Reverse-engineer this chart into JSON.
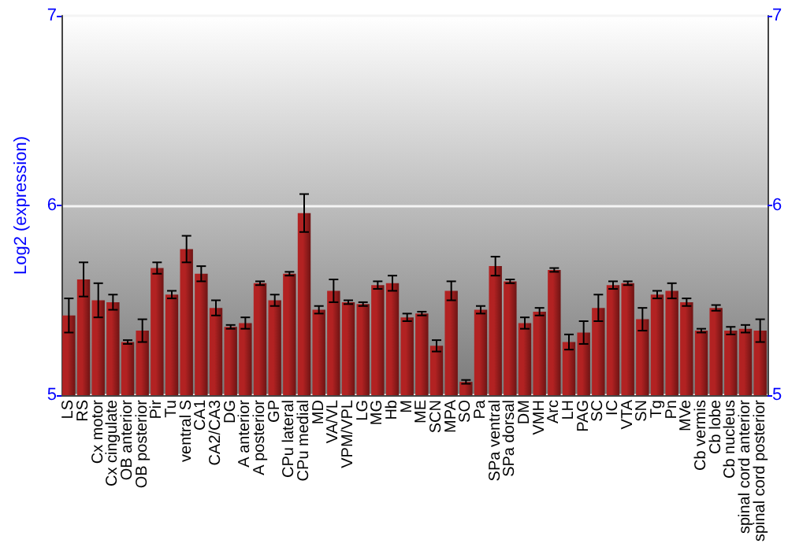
{
  "chart_data": {
    "type": "bar",
    "ylabel": "Log2 (expression)",
    "categories": [
      "LS",
      "RS",
      "Cx motor",
      "Cx cingulate",
      "OB anterior",
      "OB posterior",
      "Pir",
      "Tu",
      "ventral S",
      "CA1",
      "CA2/CA3",
      "DG",
      "A anterior",
      "A posterior",
      "GP",
      "CPu lateral",
      "CPu medial",
      "MD",
      "VA/VL",
      "VPM/VPL",
      "LG",
      "MG",
      "Hb",
      "M",
      "ME",
      "SCN",
      "MPA",
      "SO",
      "Pa",
      "SPa ventral",
      "SPa dorsal",
      "DM",
      "VMH",
      "Arc",
      "LH",
      "PAG",
      "SC",
      "IC",
      "VTA",
      "SN",
      "Tg",
      "Pn",
      "MVe",
      "Cb vermis",
      "Cb lobe",
      "Cb nucleus",
      "spinal cord anterior",
      "spinal cord posterior"
    ],
    "values": [
      5.42,
      5.61,
      5.5,
      5.49,
      5.28,
      5.34,
      5.67,
      5.53,
      5.77,
      5.64,
      5.46,
      5.36,
      5.38,
      5.59,
      5.5,
      5.64,
      5.96,
      5.45,
      5.55,
      5.49,
      5.48,
      5.58,
      5.59,
      5.41,
      5.43,
      5.26,
      5.55,
      5.07,
      5.45,
      5.68,
      5.6,
      5.38,
      5.44,
      5.66,
      5.28,
      5.33,
      5.46,
      5.58,
      5.59,
      5.4,
      5.53,
      5.55,
      5.49,
      5.34,
      5.46,
      5.34,
      5.35,
      5.34
    ],
    "errors": [
      0.09,
      0.09,
      0.09,
      0.04,
      0.01,
      0.06,
      0.03,
      0.02,
      0.07,
      0.04,
      0.04,
      0.01,
      0.03,
      0.01,
      0.03,
      0.01,
      0.1,
      0.02,
      0.06,
      0.01,
      0.01,
      0.02,
      0.04,
      0.02,
      0.01,
      0.03,
      0.05,
      0.01,
      0.02,
      0.05,
      0.01,
      0.03,
      0.02,
      0.01,
      0.04,
      0.06,
      0.07,
      0.02,
      0.01,
      0.06,
      0.02,
      0.04,
      0.02,
      0.01,
      0.015,
      0.02,
      0.02,
      0.06
    ],
    "color": "#b22222",
    "ylim": [
      5,
      7
    ],
    "yticks": [
      5,
      6,
      7
    ],
    "y2lim": [
      5,
      7
    ],
    "y2ticks": [
      5,
      6,
      7
    ],
    "grid": "y"
  }
}
